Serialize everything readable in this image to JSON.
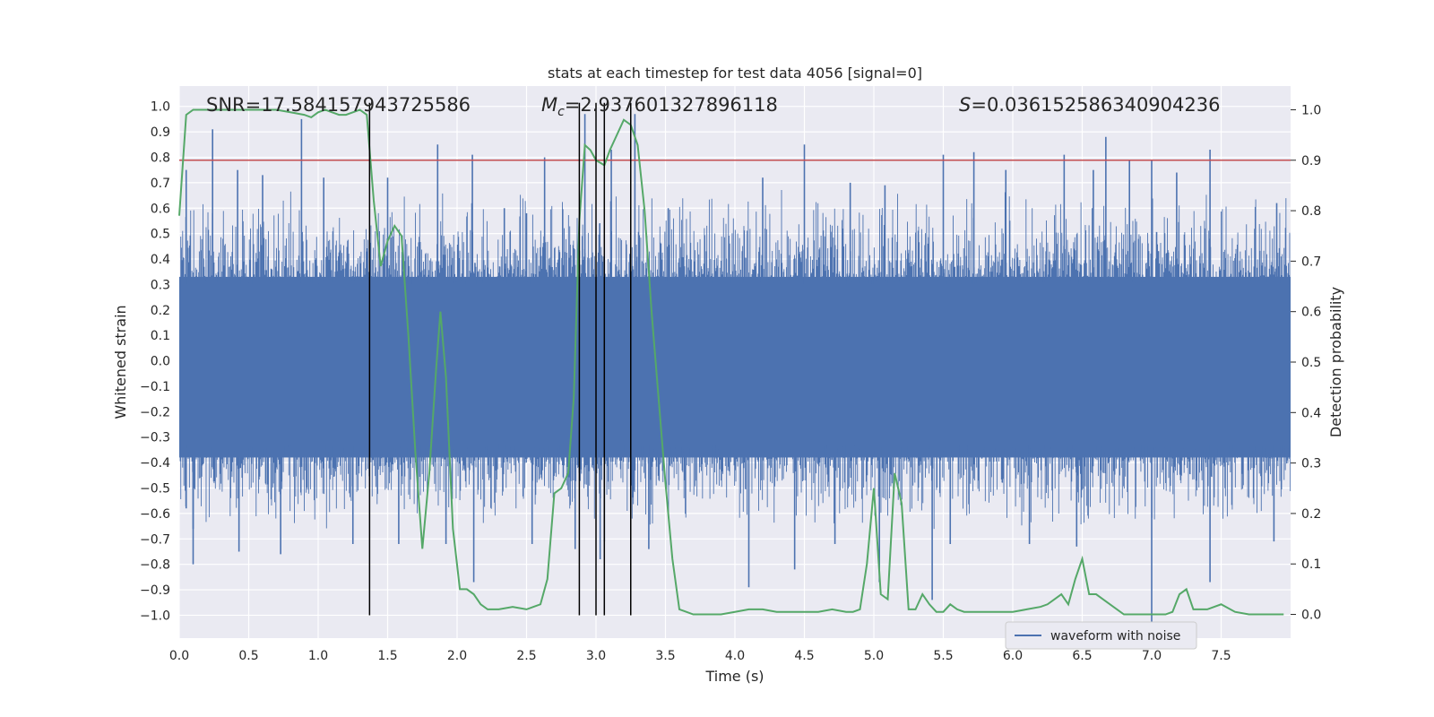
{
  "chart_data": {
    "type": "line",
    "title": "stats at each timestep for test data 4056 [signal=0]",
    "xlabel": "Time (s)",
    "ylabel": "Whitened strain",
    "y2label": "Detection probability",
    "xlim": [
      0.0,
      8.0
    ],
    "ylim": [
      -1.09,
      1.08
    ],
    "y2lim": [
      -0.047,
      1.047
    ],
    "x_ticks": [
      0.0,
      0.5,
      1.0,
      1.5,
      2.0,
      2.5,
      3.0,
      3.5,
      4.0,
      4.5,
      5.0,
      5.5,
      6.0,
      6.5,
      7.0,
      7.5
    ],
    "x_tick_labels": [
      "0.0",
      "0.5",
      "1.0",
      "1.5",
      "2.0",
      "2.5",
      "3.0",
      "3.5",
      "4.0",
      "4.5",
      "5.0",
      "5.5",
      "6.0",
      "6.5",
      "7.0",
      "7.5"
    ],
    "y_ticks": [
      -1.0,
      -0.9,
      -0.8,
      -0.7,
      -0.6,
      -0.5,
      -0.4,
      -0.3,
      -0.2,
      -0.1,
      0.0,
      0.1,
      0.2,
      0.3,
      0.4,
      0.5,
      0.6,
      0.7,
      0.8,
      0.9,
      1.0
    ],
    "y_tick_labels": [
      "−1.0",
      "−0.9",
      "−0.8",
      "−0.7",
      "−0.6",
      "−0.5",
      "−0.4",
      "−0.3",
      "−0.2",
      "−0.1",
      "0.0",
      "0.1",
      "0.2",
      "0.3",
      "0.4",
      "0.5",
      "0.6",
      "0.7",
      "0.8",
      "0.9",
      "1.0"
    ],
    "y2_ticks": [
      0.0,
      0.1,
      0.2,
      0.3,
      0.4,
      0.5,
      0.6,
      0.7,
      0.8,
      0.9,
      1.0
    ],
    "y2_tick_labels": [
      "0.0",
      "0.1",
      "0.2",
      "0.3",
      "0.4",
      "0.5",
      "0.6",
      "0.7",
      "0.8",
      "0.9",
      "1.0"
    ],
    "grid": true,
    "legend": {
      "position": "bottom-right",
      "entries": [
        "waveform with noise"
      ]
    },
    "annotations": {
      "snr": "SNR=17.584157943725586",
      "mc_symbol": "M",
      "mc_subscript": "c",
      "mc_value": "=2.937601327896118",
      "s_symbol": "S",
      "s_value": "=0.036152586340904236"
    },
    "threshold_y2": 0.9,
    "vertical_markers_x": [
      1.37,
      2.88,
      3.0,
      3.06,
      3.25
    ],
    "marker_y_range": [
      -1.0,
      1.0
    ],
    "waveform_spikes": {
      "up": [
        [
          0.05,
          0.75
        ],
        [
          0.24,
          0.91
        ],
        [
          0.42,
          0.75
        ],
        [
          0.6,
          0.73
        ],
        [
          0.88,
          0.95
        ],
        [
          1.04,
          0.72
        ],
        [
          1.5,
          0.72
        ],
        [
          1.86,
          0.85
        ],
        [
          2.11,
          0.81
        ],
        [
          2.34,
          0.6
        ],
        [
          2.5,
          0.58
        ],
        [
          2.63,
          0.8
        ],
        [
          2.92,
          0.97
        ],
        [
          3.11,
          0.83
        ],
        [
          3.28,
          0.97
        ],
        [
          3.52,
          0.6
        ],
        [
          4.2,
          0.72
        ],
        [
          4.5,
          0.85
        ],
        [
          4.83,
          0.7
        ],
        [
          5.08,
          0.69
        ],
        [
          5.5,
          0.81
        ],
        [
          5.72,
          0.82
        ],
        [
          5.95,
          0.75
        ],
        [
          6.37,
          0.81
        ],
        [
          6.58,
          0.75
        ],
        [
          6.67,
          0.88
        ],
        [
          6.84,
          0.79
        ],
        [
          7.0,
          0.79
        ],
        [
          7.18,
          0.74
        ],
        [
          7.42,
          0.83
        ],
        [
          7.9,
          0.62
        ]
      ],
      "down": [
        [
          0.05,
          -0.58
        ],
        [
          0.1,
          -0.66
        ],
        [
          0.1,
          -0.8
        ],
        [
          0.43,
          -0.75
        ],
        [
          0.73,
          -0.76
        ],
        [
          1.25,
          -0.72
        ],
        [
          1.58,
          -0.72
        ],
        [
          1.92,
          -0.72
        ],
        [
          2.12,
          -0.87
        ],
        [
          2.54,
          -0.72
        ],
        [
          2.85,
          -0.74
        ],
        [
          3.03,
          -0.78
        ],
        [
          3.06,
          -0.71
        ],
        [
          3.38,
          -0.74
        ],
        [
          4.1,
          -0.89
        ],
        [
          4.43,
          -0.82
        ],
        [
          4.72,
          -0.72
        ],
        [
          5.04,
          -0.87
        ],
        [
          5.42,
          -0.94
        ],
        [
          5.55,
          -0.72
        ],
        [
          6.12,
          -0.72
        ],
        [
          6.46,
          -0.73
        ],
        [
          7.0,
          -1.09
        ],
        [
          7.42,
          -0.87
        ],
        [
          7.88,
          -0.71
        ]
      ]
    },
    "series": [
      {
        "name": "waveform with noise",
        "kind": "strain"
      },
      {
        "kind": "detection_probability",
        "x": [
          0.0,
          0.05,
          0.1,
          0.15,
          0.2,
          0.3,
          0.4,
          0.5,
          0.6,
          0.7,
          0.8,
          0.9,
          0.95,
          1.0,
          1.05,
          1.1,
          1.15,
          1.2,
          1.25,
          1.3,
          1.35,
          1.4,
          1.45,
          1.5,
          1.55,
          1.6,
          1.65,
          1.7,
          1.75,
          1.8,
          1.85,
          1.88,
          1.92,
          1.97,
          2.02,
          2.07,
          2.12,
          2.17,
          2.22,
          2.3,
          2.4,
          2.5,
          2.55,
          2.6,
          2.65,
          2.7,
          2.75,
          2.8,
          2.84,
          2.88,
          2.92,
          2.96,
          3.0,
          3.06,
          3.1,
          3.15,
          3.2,
          3.25,
          3.3,
          3.35,
          3.4,
          3.45,
          3.5,
          3.55,
          3.6,
          3.7,
          3.8,
          3.9,
          4.0,
          4.1,
          4.2,
          4.3,
          4.4,
          4.5,
          4.6,
          4.7,
          4.8,
          4.85,
          4.9,
          4.95,
          5.0,
          5.05,
          5.1,
          5.15,
          5.2,
          5.25,
          5.3,
          5.35,
          5.4,
          5.45,
          5.5,
          5.55,
          5.6,
          5.65,
          5.7,
          5.8,
          5.9,
          6.0,
          6.1,
          6.2,
          6.25,
          6.3,
          6.35,
          6.4,
          6.45,
          6.5,
          6.55,
          6.6,
          6.65,
          6.7,
          6.8,
          6.9,
          7.0,
          7.05,
          7.1,
          7.15,
          7.2,
          7.25,
          7.3,
          7.4,
          7.5,
          7.6,
          7.7,
          7.8,
          7.95
        ],
        "values": [
          0.79,
          0.99,
          1.0,
          1.0,
          1.0,
          1.0,
          1.0,
          1.0,
          1.0,
          1.0,
          0.995,
          0.99,
          0.985,
          0.995,
          1.0,
          0.995,
          0.99,
          0.99,
          0.995,
          1.0,
          0.99,
          0.82,
          0.69,
          0.74,
          0.77,
          0.75,
          0.55,
          0.32,
          0.13,
          0.28,
          0.49,
          0.6,
          0.47,
          0.17,
          0.05,
          0.05,
          0.04,
          0.02,
          0.01,
          0.01,
          0.015,
          0.01,
          0.015,
          0.02,
          0.07,
          0.24,
          0.25,
          0.28,
          0.43,
          0.78,
          0.93,
          0.92,
          0.9,
          0.89,
          0.92,
          0.95,
          0.98,
          0.97,
          0.93,
          0.8,
          0.6,
          0.43,
          0.26,
          0.11,
          0.01,
          0.0,
          0.0,
          0.0,
          0.005,
          0.01,
          0.01,
          0.005,
          0.005,
          0.005,
          0.005,
          0.01,
          0.005,
          0.005,
          0.01,
          0.1,
          0.25,
          0.04,
          0.03,
          0.28,
          0.22,
          0.01,
          0.01,
          0.04,
          0.02,
          0.005,
          0.005,
          0.02,
          0.01,
          0.005,
          0.005,
          0.005,
          0.005,
          0.005,
          0.01,
          0.015,
          0.02,
          0.03,
          0.04,
          0.02,
          0.07,
          0.11,
          0.04,
          0.04,
          0.03,
          0.02,
          0.0,
          0.0,
          0.0,
          0.0,
          0.0,
          0.005,
          0.04,
          0.05,
          0.01,
          0.01,
          0.02,
          0.005,
          0.0,
          0.0,
          0.0
        ]
      }
    ],
    "colors": {
      "axes_bg": "#eaeaf2",
      "grid": "#ffffff",
      "waveform": "#4c72b0",
      "probability": "#55a868",
      "threshold": "#c44e52",
      "markers": "#000000",
      "text": "#262626"
    }
  }
}
